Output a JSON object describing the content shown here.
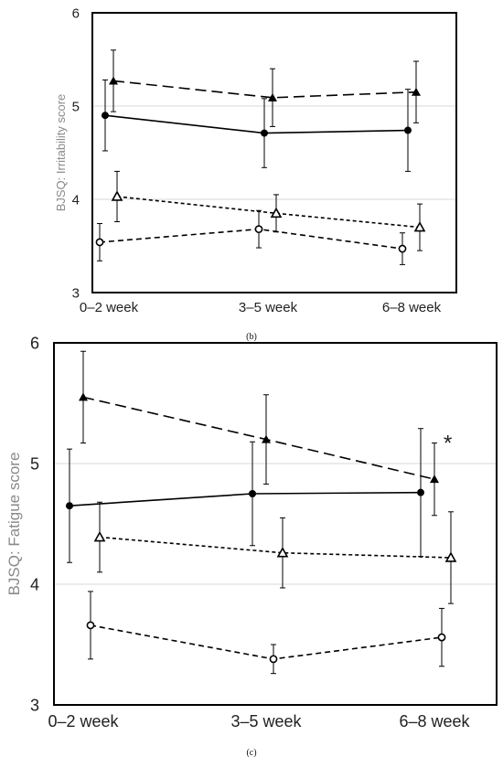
{
  "chart_data": [
    {
      "type": "line",
      "panel_label": "(b)",
      "ylabel": "BJSQ: Irritability score",
      "categories": [
        "0–2 week",
        "3–5 week",
        "6–8 week"
      ],
      "ylim": [
        3,
        6
      ],
      "yticks": [
        3,
        4,
        5,
        6
      ],
      "grid": true,
      "annotations": [],
      "series": [
        {
          "marker": "filled-triangle",
          "line": "long-dash",
          "values": [
            5.27,
            5.09,
            5.15
          ],
          "errors": [
            0.33,
            0.31,
            0.33
          ]
        },
        {
          "marker": "filled-circle",
          "line": "solid",
          "values": [
            4.9,
            4.71,
            4.74
          ],
          "errors": [
            0.38,
            0.37,
            0.44
          ]
        },
        {
          "marker": "open-triangle",
          "line": "dotted",
          "values": [
            4.03,
            3.85,
            3.7
          ],
          "errors": [
            0.27,
            0.2,
            0.25
          ]
        },
        {
          "marker": "open-circle",
          "line": "dashed",
          "values": [
            3.54,
            3.68,
            3.47
          ],
          "errors": [
            0.2,
            0.2,
            0.17
          ]
        }
      ]
    },
    {
      "type": "line",
      "panel_label": "(c)",
      "ylabel": "BJSQ: Fatigue score",
      "categories": [
        "0–2 week",
        "3–5 week",
        "6–8 week"
      ],
      "ylim": [
        3,
        6
      ],
      "yticks": [
        3,
        4,
        5,
        6
      ],
      "grid": true,
      "annotations": [
        {
          "text": "*",
          "category_index": 2
        }
      ],
      "series": [
        {
          "marker": "filled-triangle",
          "line": "long-dash",
          "values": [
            5.55,
            5.2,
            4.87
          ],
          "errors": [
            0.38,
            0.37,
            0.3
          ]
        },
        {
          "marker": "filled-circle",
          "line": "solid",
          "values": [
            4.65,
            4.75,
            4.76
          ],
          "errors": [
            0.47,
            0.43,
            0.53
          ]
        },
        {
          "marker": "open-triangle",
          "line": "dotted",
          "values": [
            4.39,
            4.26,
            4.22
          ],
          "errors": [
            0.29,
            0.29,
            0.38
          ]
        },
        {
          "marker": "open-circle",
          "line": "dashed",
          "values": [
            3.66,
            3.38,
            3.56
          ],
          "errors": [
            0.28,
            0.12,
            0.24
          ]
        }
      ]
    }
  ]
}
